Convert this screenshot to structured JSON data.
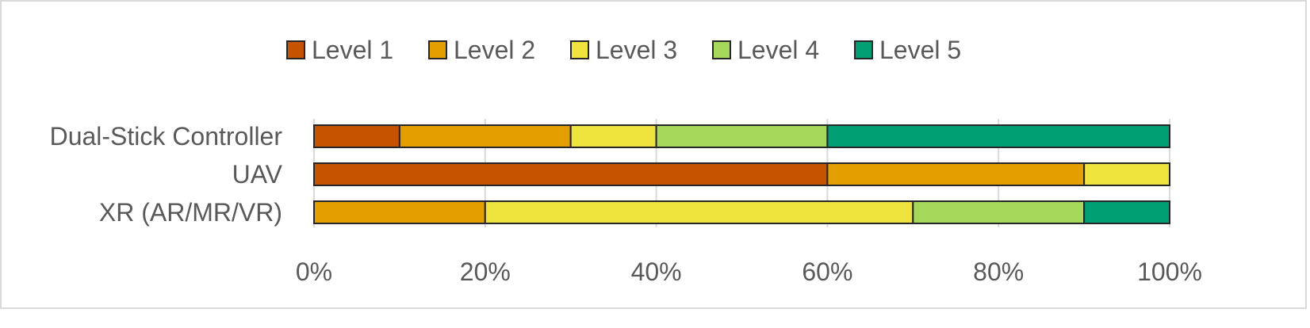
{
  "chart_data": {
    "type": "bar",
    "orientation": "horizontal",
    "stacked": true,
    "categories": [
      "Dual-Stick Controller",
      "UAV",
      "XR (AR/MR/VR)"
    ],
    "series": [
      {
        "name": "Level 1",
        "color": "#C65300",
        "values": [
          10,
          60,
          0
        ]
      },
      {
        "name": "Level 2",
        "color": "#E39E00",
        "values": [
          20,
          30,
          20
        ]
      },
      {
        "name": "Level 3",
        "color": "#EFE33E",
        "values": [
          10,
          10,
          50
        ]
      },
      {
        "name": "Level 4",
        "color": "#A6D95B",
        "values": [
          20,
          0,
          20
        ]
      },
      {
        "name": "Level 5",
        "color": "#009E73",
        "values": [
          40,
          0,
          10
        ]
      }
    ],
    "x_ticks": [
      "0%",
      "20%",
      "40%",
      "60%",
      "80%",
      "100%"
    ],
    "xlim": [
      0,
      100
    ],
    "grid": true,
    "legend_position": "top"
  }
}
